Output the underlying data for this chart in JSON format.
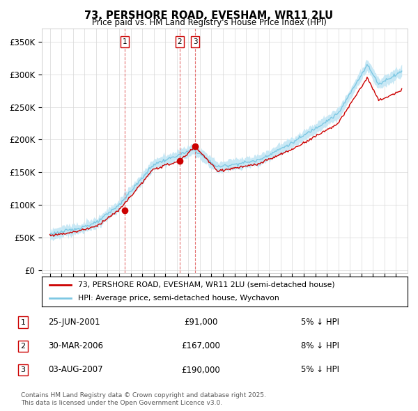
{
  "title": "73, PERSHORE ROAD, EVESHAM, WR11 2LU",
  "subtitle": "Price paid vs. HM Land Registry's House Price Index (HPI)",
  "ylabel_ticks": [
    "£0",
    "£50K",
    "£100K",
    "£150K",
    "£200K",
    "£250K",
    "£300K",
    "£350K"
  ],
  "ytick_vals": [
    0,
    50000,
    100000,
    150000,
    200000,
    250000,
    300000,
    350000
  ],
  "ylim": [
    0,
    370000
  ],
  "hpi_color": "#7ec8e3",
  "hpi_fill": "#c8e8f5",
  "price_color": "#cc0000",
  "vline_color": "#e06060",
  "transactions": [
    {
      "label": "1",
      "date": "25-JUN-2001",
      "price": 91000,
      "year": 2001.49,
      "pct": "5% ↓ HPI"
    },
    {
      "label": "2",
      "date": "30-MAR-2006",
      "price": 167000,
      "year": 2006.24,
      "pct": "8% ↓ HPI"
    },
    {
      "label": "3",
      "date": "03-AUG-2007",
      "price": 190000,
      "year": 2007.59,
      "pct": "5% ↓ HPI"
    }
  ],
  "legend_label1": "73, PERSHORE ROAD, EVESHAM, WR11 2LU (semi-detached house)",
  "legend_label2": "HPI: Average price, semi-detached house, Wychavon",
  "footer1": "Contains HM Land Registry data © Crown copyright and database right 2025.",
  "footer2": "This data is licensed under the Open Government Licence v3.0."
}
